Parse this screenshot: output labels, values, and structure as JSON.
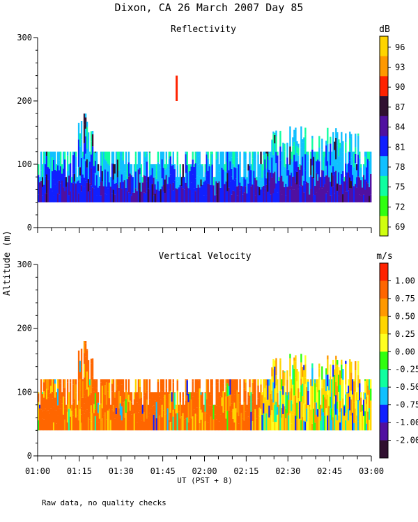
{
  "chart_data": {
    "type": "heatmap",
    "title": "Dixon, CA 26 March 2007  Day  85",
    "xlabel": "UT  (PST + 8)",
    "ylabel": "Altitude (m)",
    "x_ticks": [
      "01:00",
      "01:15",
      "01:30",
      "01:45",
      "02:00",
      "02:15",
      "02:30",
      "02:45",
      "03:00"
    ],
    "y_ticks": [
      "0",
      "100",
      "200",
      "300"
    ],
    "ylim": [
      0,
      300
    ],
    "xlim_minutes": [
      0,
      120
    ],
    "footnote": "Raw data, no quality checks",
    "panels": [
      {
        "name": "reflectivity",
        "title": "Reflectivity",
        "units": "dB",
        "colorbar_labels": [
          "96",
          "93",
          "90",
          "87",
          "84",
          "81",
          "78",
          "75",
          "72",
          "69"
        ],
        "colorbar_colors": [
          "#ffd500",
          "#ff9900",
          "#ff2200",
          "#301030",
          "#5010a0",
          "#1020ff",
          "#10c0ff",
          "#10ffa0",
          "#30ff10",
          "#d0ff10"
        ],
        "colorbar_range": [
          69,
          99
        ],
        "echo_base_m": 40,
        "echo_top_typical_m": 120,
        "echo_top_max_m": 180,
        "outlier": {
          "time_min": 50,
          "alt_low_m": 200,
          "alt_high_m": 240,
          "color": "#ff2200"
        }
      },
      {
        "name": "vertical-velocity",
        "title": "Vertical Velocity",
        "units": "m/s",
        "colorbar_labels": [
          "1.00",
          "0.75",
          "0.50",
          "0.25",
          "0.00",
          "-0.25",
          "-0.50",
          "-0.75",
          "-1.00",
          "-2.00"
        ],
        "colorbar_colors": [
          "#ff2200",
          "#ff6600",
          "#ff9900",
          "#ffd500",
          "#ffff20",
          "#30ff10",
          "#10ffa0",
          "#10c0ff",
          "#1020ff",
          "#5010a0",
          "#301030"
        ],
        "colorbar_range": [
          -2.0,
          1.2
        ],
        "echo_base_m": 40,
        "echo_top_typical_m": 120,
        "echo_top_max_m": 180
      }
    ]
  }
}
